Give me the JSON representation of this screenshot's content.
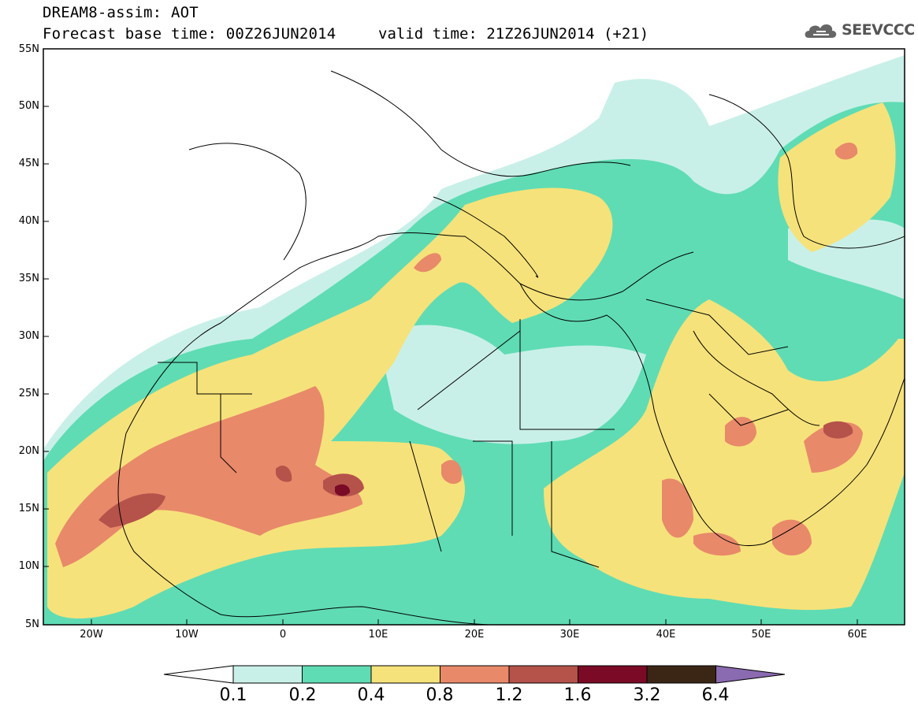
{
  "header": {
    "model_line": "DREAM8-assim: AOT",
    "base_time_line": "Forecast base time: 00Z26JUN2014",
    "valid_time_line": "valid time: 21Z26JUN2014 (+21)",
    "logo_text": "SEEVCCC"
  },
  "map": {
    "lat_labels": [
      "55N",
      "50N",
      "45N",
      "40N",
      "35N",
      "30N",
      "25N",
      "20N",
      "15N",
      "10N",
      "5N"
    ],
    "lon_labels": [
      "20W",
      "10W",
      "0",
      "10E",
      "20E",
      "30E",
      "40E",
      "50E",
      "60E"
    ],
    "lat_range": [
      5,
      55
    ],
    "lon_range": [
      -25,
      65
    ]
  },
  "colorbar": {
    "labels": [
      "0.1",
      "0.2",
      "0.4",
      "0.8",
      "1.2",
      "1.6",
      "3.2",
      "6.4"
    ],
    "colors": [
      "#ffffff",
      "#c9f0e8",
      "#5fdcb4",
      "#f6e27a",
      "#e8896a",
      "#b5524a",
      "#7a0a26",
      "#3b2616",
      "#8a6ab0"
    ]
  }
}
